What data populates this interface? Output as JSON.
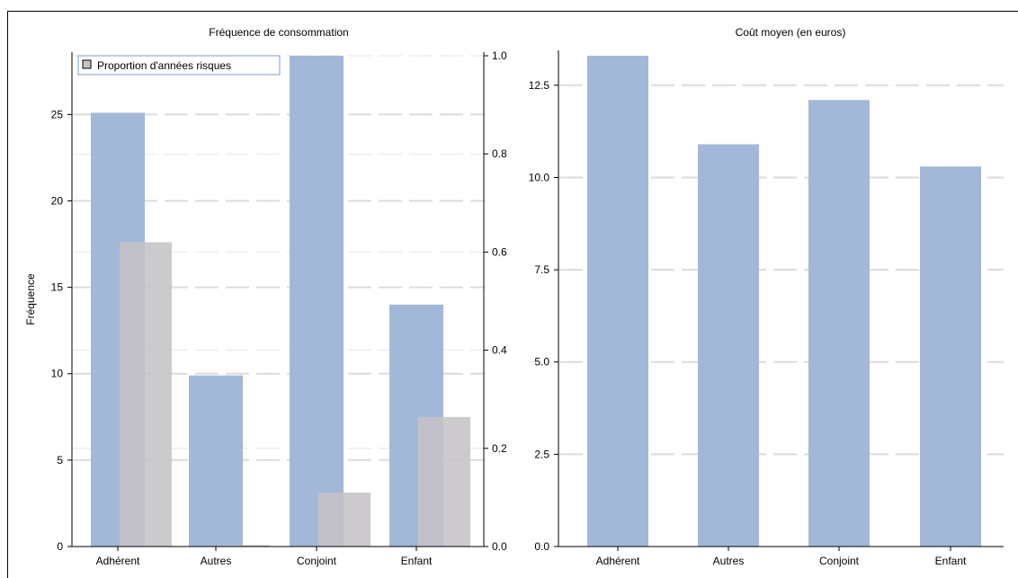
{
  "chart_data": [
    {
      "type": "bar",
      "title": "Fréquence de consommation",
      "ylabel": "Fréquence",
      "categories": [
        "Adhérent",
        "Autres",
        "Conjoint",
        "Enfant"
      ],
      "ylim": [
        0,
        28.4
      ],
      "yticks": [
        0,
        5,
        10,
        15,
        20,
        25
      ],
      "y2lim": [
        0,
        1.0
      ],
      "y2ticks": [
        "0.0",
        "0.2",
        "0.4",
        "0.6",
        "0.8",
        "1.0"
      ],
      "grid": true,
      "legend_position": "top-left",
      "series": [
        {
          "values": [
            25.1,
            9.9,
            28.4,
            14.0
          ],
          "color": "#a3b7d8",
          "axis": "left"
        },
        {
          "name": "Proportion d'années risques",
          "values": [
            0.62,
            0.003,
            0.11,
            0.264
          ],
          "color": "#c6c3c7",
          "axis": "right"
        }
      ]
    },
    {
      "type": "bar",
      "title": "Coût moyen (en euros)",
      "categories": [
        "Adhérent",
        "Autres",
        "Conjoint",
        "Enfant"
      ],
      "ylim": [
        0,
        13.3
      ],
      "yticks": [
        "0.0",
        "2.5",
        "5.0",
        "7.5",
        "10.0",
        "12.5"
      ],
      "grid": true,
      "series": [
        {
          "values": [
            13.3,
            10.9,
            12.1,
            10.3
          ],
          "color": "#a3b7d8"
        }
      ]
    }
  ]
}
